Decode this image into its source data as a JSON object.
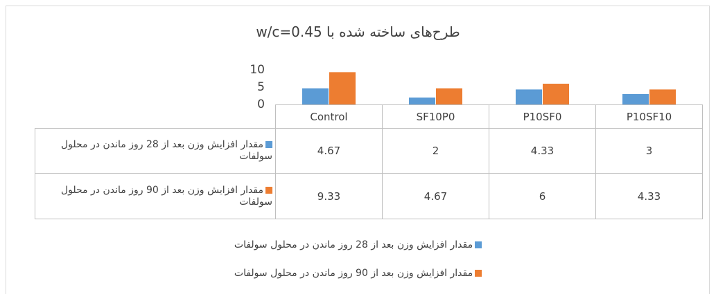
{
  "chart_data": {
    "type": "bar",
    "title": "طرح‌های ساخته شده با w/c=0.45",
    "categories": [
      "Control",
      "SF10P0",
      "P10SF0",
      "P10SF10"
    ],
    "series": [
      {
        "name": "مقدار افزایش وزن بعد از 28 روز ماندن در محلول سولفات",
        "color": "#5b9bd5",
        "values": [
          4.67,
          2,
          4.33,
          3
        ]
      },
      {
        "name": "مقدار افزایش وزن بعد از 90 روز ماندن در محلول سولفات",
        "color": "#ed7d31",
        "values": [
          9.33,
          4.67,
          6,
          4.33
        ]
      }
    ],
    "ylim": [
      0,
      10
    ],
    "yticks": [
      0,
      5,
      10
    ],
    "grid": false,
    "legend": "bottom",
    "data_table": true
  }
}
